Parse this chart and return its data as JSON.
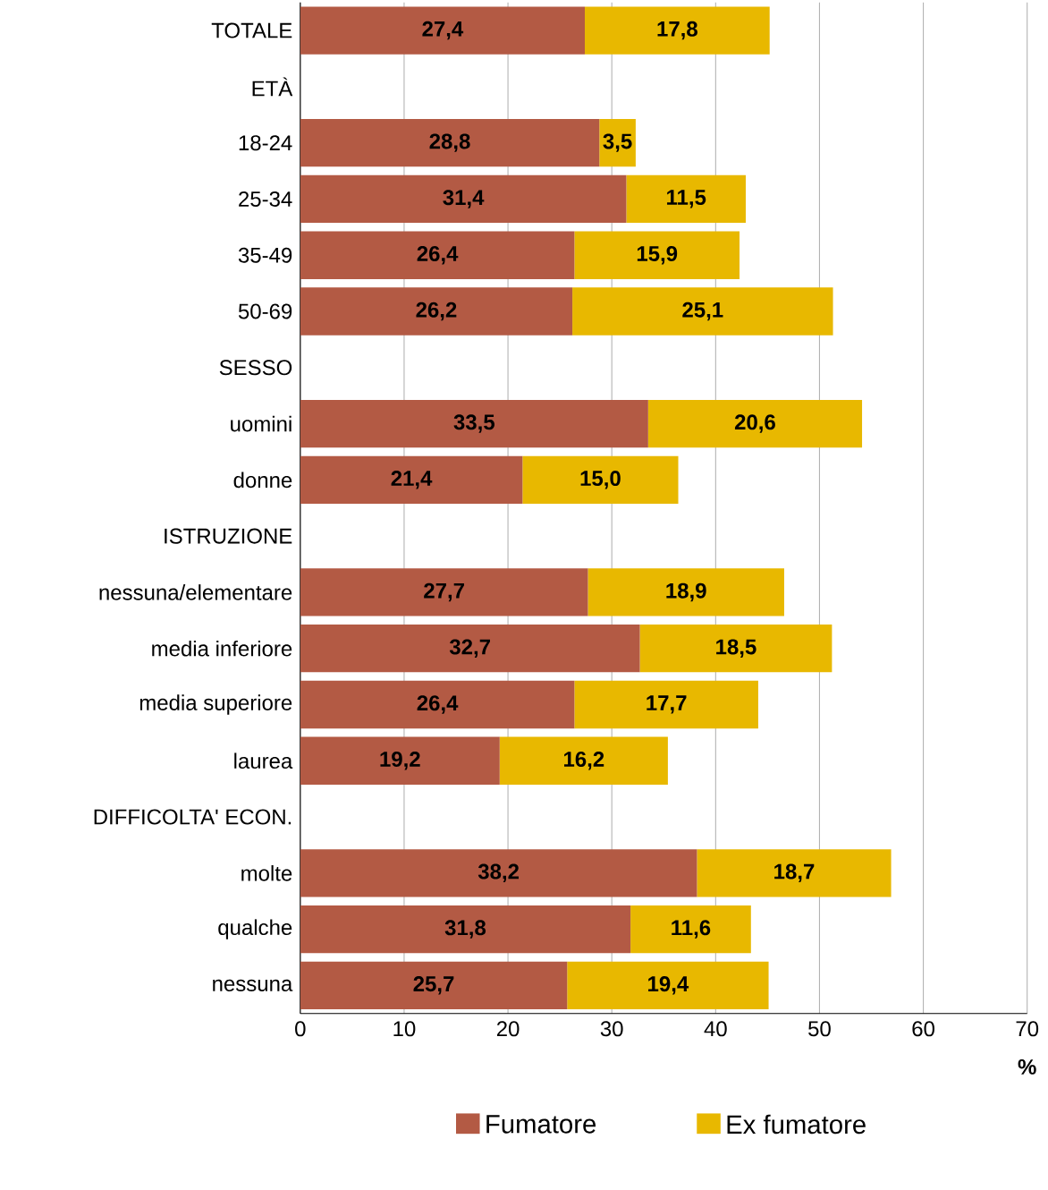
{
  "chart_data": {
    "type": "bar",
    "orientation": "horizontal",
    "stacked": true,
    "categories": [
      "TOTALE",
      "ETÀ",
      "18-24",
      "25-34",
      "35-49",
      "50-69",
      "SESSO",
      "uomini",
      "donne",
      "ISTRUZIONE",
      "nessuna/elementare",
      "media inferiore",
      "media superiore",
      "laurea",
      "DIFFICOLTA' ECON.",
      "molte",
      "qualche",
      "nessuna"
    ],
    "series": [
      {
        "name": "Fumatore",
        "color": "#b35a44",
        "values": [
          27.4,
          null,
          28.8,
          31.4,
          26.4,
          26.2,
          null,
          33.5,
          21.4,
          null,
          27.7,
          32.7,
          26.4,
          19.2,
          null,
          38.2,
          31.8,
          25.7
        ],
        "value_labels": [
          "27,4",
          null,
          "28,8",
          "31,4",
          "26,4",
          "26,2",
          null,
          "33,5",
          "21,4",
          null,
          "27,7",
          "32,7",
          "26,4",
          "19,2",
          null,
          "38,2",
          "31,8",
          "25,7"
        ]
      },
      {
        "name": "Ex fumatore",
        "color": "#e8b800",
        "values": [
          17.8,
          null,
          3.5,
          11.5,
          15.9,
          25.1,
          null,
          20.6,
          15.0,
          null,
          18.9,
          18.5,
          17.7,
          16.2,
          null,
          18.7,
          11.6,
          19.4
        ],
        "value_labels": [
          "17,8",
          null,
          "3,5",
          "11,5",
          "15,9",
          "25,1",
          null,
          "20,6",
          "15,0",
          null,
          "18,9",
          "18,5",
          "17,7",
          "16,2",
          null,
          "18,7",
          "11,6",
          "19,4"
        ]
      }
    ],
    "xlim": [
      0,
      70
    ],
    "xticks": [
      0,
      10,
      20,
      30,
      40,
      50,
      60,
      70
    ],
    "grid": "x",
    "xlabel": "%",
    "legend": "bottom"
  }
}
